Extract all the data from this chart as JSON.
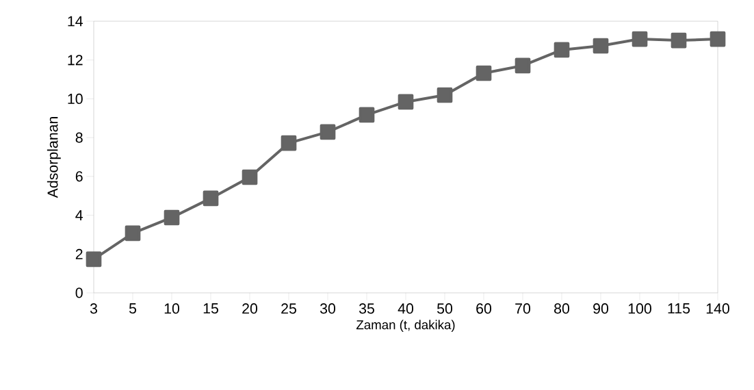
{
  "chart_data": {
    "type": "line",
    "xlabel": "Zaman (t, dakika)",
    "ylabel": "Adsorplanan",
    "categories": [
      "3",
      "5",
      "10",
      "15",
      "20",
      "25",
      "30",
      "35",
      "40",
      "50",
      "60",
      "70",
      "80",
      "90",
      "100",
      "115",
      "140"
    ],
    "series": [
      {
        "color": "#646464",
        "values": [
          1.73,
          3.07,
          3.88,
          4.87,
          5.96,
          7.72,
          8.29,
          9.17,
          9.84,
          10.19,
          11.32,
          11.71,
          12.52,
          12.73,
          13.08,
          13.01,
          13.08
        ]
      }
    ],
    "ylim": [
      0,
      14
    ],
    "yticks": [
      0,
      2,
      4,
      6,
      8,
      10,
      12,
      14
    ],
    "marker": "square",
    "line_style": "solid",
    "grid": false,
    "legend": false
  }
}
